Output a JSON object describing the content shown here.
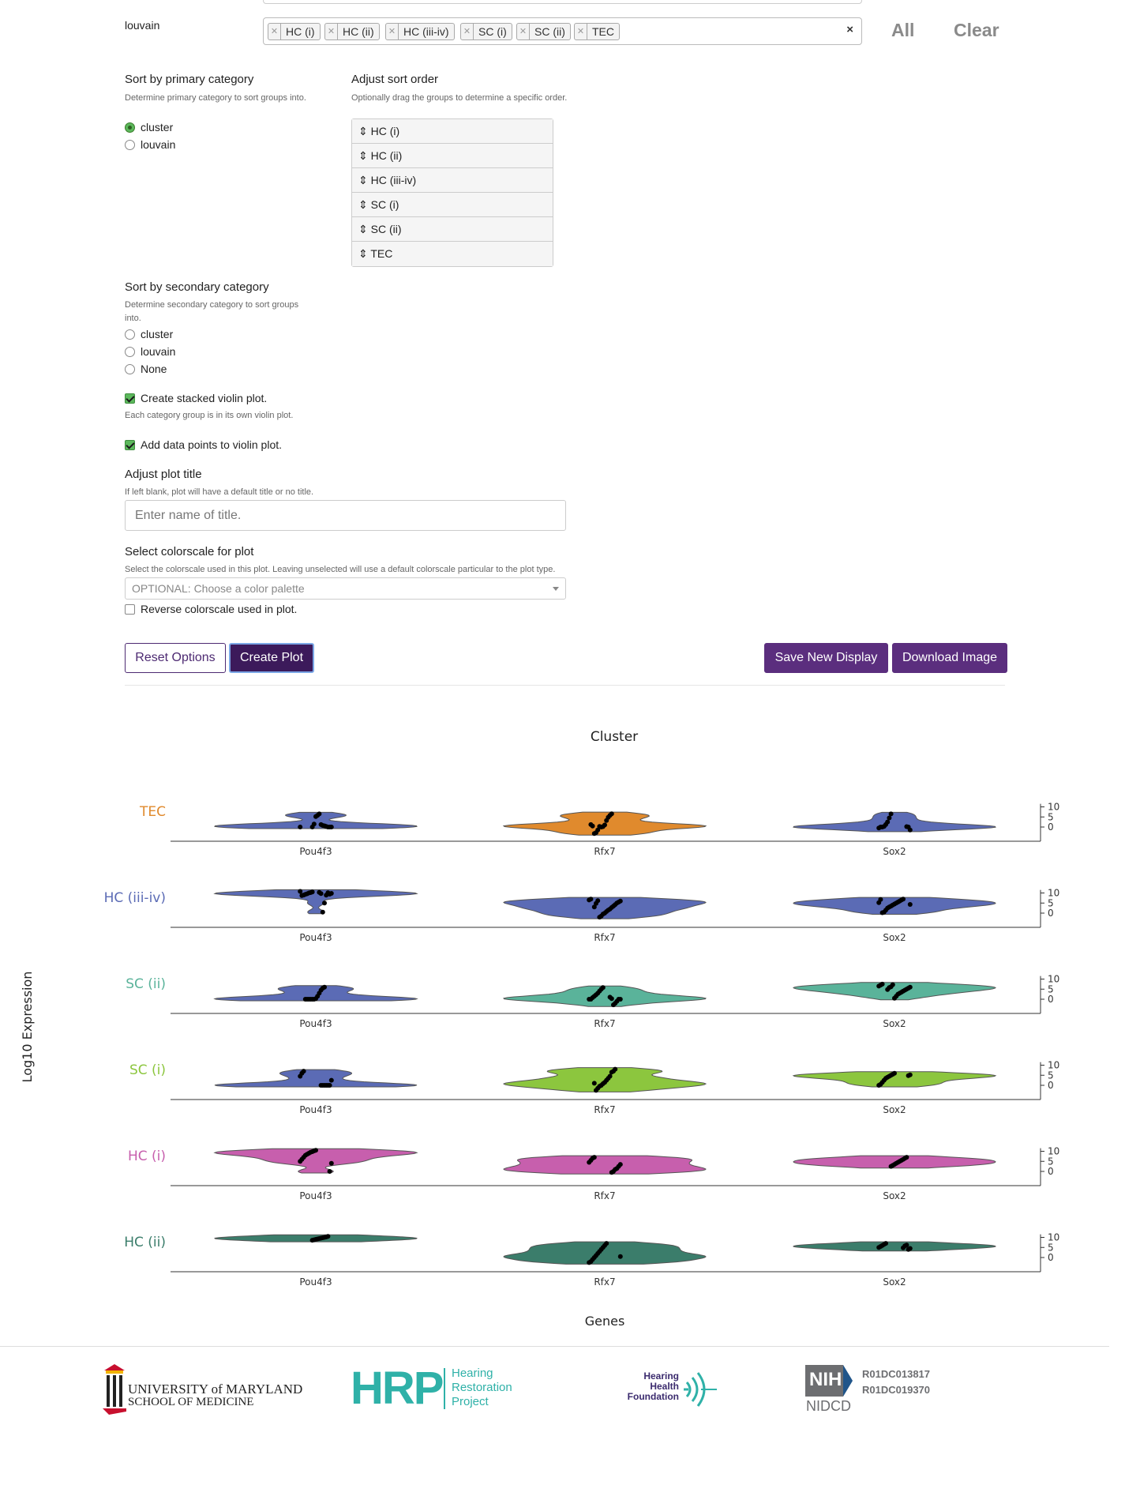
{
  "filter": {
    "label": "louvain",
    "tags": [
      "HC (i)",
      "HC (ii)",
      "HC (iii-iv)",
      "SC (i)",
      "SC (ii)",
      "TEC"
    ],
    "clear_x": "×",
    "all_label": "All",
    "clear_label": "Clear"
  },
  "primary": {
    "title": "Sort by primary category",
    "hint": "Determine primary category to sort groups into.",
    "options": [
      "cluster",
      "louvain"
    ],
    "selected": "cluster"
  },
  "sort_order": {
    "title": "Adjust sort order",
    "hint": "Optionally drag the groups to determine a specific order.",
    "items": [
      "⇕ HC (i)",
      "⇕ HC (ii)",
      "⇕ HC (iii-iv)",
      "⇕ SC (i)",
      "⇕ SC (ii)",
      "⇕ TEC"
    ]
  },
  "secondary": {
    "title": "Sort by secondary category",
    "hint": "Determine secondary category to sort groups into.",
    "options": [
      "cluster",
      "louvain",
      "None"
    ]
  },
  "stacked": {
    "label": "Create stacked violin plot.",
    "hint": "Each category group is in its own violin plot.",
    "checked": true
  },
  "datapoints": {
    "label": "Add data points to violin plot.",
    "checked": true
  },
  "plot_title": {
    "title": "Adjust plot title",
    "hint": "If left blank, plot will have a default title or no title.",
    "placeholder": "Enter name of title."
  },
  "colorscale": {
    "title": "Select colorscale for plot",
    "hint": "Select the colorscale used in this plot. Leaving unselected will use a default colorscale particular to the plot type.",
    "placeholder": "OPTIONAL: Choose a color palette",
    "reverse_label": "Reverse colorscale used in plot."
  },
  "buttons": {
    "reset": "Reset Options",
    "create": "Create Plot",
    "save": "Save New Display",
    "download": "Download Image"
  },
  "chart_data": {
    "type": "violin",
    "title": "Cluster",
    "xlabel": "Genes",
    "ylabel": "Log10 Expression",
    "genes": [
      "Pou4f3",
      "Rfx7",
      "Sox2"
    ],
    "yticks": [
      0,
      5,
      10
    ],
    "ylim": [
      -4,
      12
    ],
    "rows": [
      {
        "name": "TEC",
        "color": "#e08a2d",
        "violins": [
          {
            "gene": "Pou4f3",
            "fill": "#5b6bb5",
            "points": [
              0,
              0,
              0,
              0,
              0.3,
              0.6,
              0.8,
              1.2,
              6.5,
              5.8,
              5.2,
              1.5,
              0
            ]
          },
          {
            "gene": "Rfx7",
            "fill": "#e08a2d",
            "points": [
              6.6,
              5.8,
              4.8,
              3.2,
              1,
              0.2,
              0,
              0.3,
              -1.5,
              -2.8,
              -3.2,
              0.5,
              1.2
            ]
          },
          {
            "gene": "Sox2",
            "fill": "#5b6bb5",
            "points": [
              6.5,
              4.5,
              2.5,
              1.2,
              0.3,
              0,
              0,
              -0.5,
              -1.5,
              0,
              0.2
            ]
          }
        ]
      },
      {
        "name": "HC (iii-iv)",
        "color": "#5b6bb5",
        "violins": [
          {
            "gene": "Pou4f3",
            "fill": "#5b6bb5",
            "points": [
              10.5,
              10.2,
              10,
              9.6,
              9.3,
              9,
              8.7,
              10.8,
              9.8,
              9.4,
              10.1,
              8.9,
              5,
              0.5,
              9.7,
              10.3
            ]
          },
          {
            "gene": "Rfx7",
            "fill": "#5b6bb5",
            "points": [
              7,
              6.5,
              6,
              5.5,
              5,
              4.2,
              3.5,
              2.8,
              2,
              1.5,
              0.8,
              0,
              -0.5,
              -1.5,
              -2,
              6.2,
              4.8,
              3
            ]
          },
          {
            "gene": "Sox2",
            "fill": "#5b6bb5",
            "points": [
              7,
              6.5,
              6,
              5.5,
              5,
              4.5,
              4,
              3.5,
              3,
              2.5,
              1.5,
              0.5,
              0.2,
              6.8,
              5.2,
              4.3
            ]
          }
        ]
      },
      {
        "name": "SC (ii)",
        "color": "#5ab39a",
        "violins": [
          {
            "gene": "Pou4f3",
            "fill": "#5b6bb5",
            "points": [
              6,
              5.5,
              4.5,
              3,
              1.5,
              0.3,
              0,
              0,
              0,
              0,
              0,
              0
            ]
          },
          {
            "gene": "Rfx7",
            "fill": "#5ab39a",
            "points": [
              5.8,
              5,
              4,
              3,
              2.2,
              1.5,
              0.8,
              0,
              0,
              0,
              0,
              -1,
              -2,
              -2.8,
              0.3,
              1
            ]
          },
          {
            "gene": "Sox2",
            "fill": "#5ab39a",
            "points": [
              7.5,
              7,
              6.5,
              6,
              5.5,
              5,
              4.5,
              4,
              3.5,
              3,
              2.5,
              1.5,
              0.5,
              7.2,
              6.2,
              5.8,
              4.8
            ]
          }
        ]
      },
      {
        "name": "SC (i)",
        "color": "#8cc63e",
        "violins": [
          {
            "gene": "Pou4f3",
            "fill": "#5b6bb5",
            "points": [
              7,
              6,
              4.5,
              2.5,
              0,
              0,
              0,
              0,
              0,
              0
            ]
          },
          {
            "gene": "Rfx7",
            "fill": "#8cc63e",
            "points": [
              8,
              7,
              6.5,
              4.5,
              3.5,
              2.5,
              1.5,
              0.8,
              0,
              -0.5,
              -1.5,
              -2.5,
              1
            ]
          },
          {
            "gene": "Sox2",
            "fill": "#8cc63e",
            "points": [
              6,
              5.5,
              5,
              4.5,
              4,
              3.5,
              2.5,
              1.5,
              0.5,
              0,
              5.2,
              4.8
            ]
          }
        ]
      },
      {
        "name": "HC (i)",
        "color": "#c75fad",
        "violins": [
          {
            "gene": "Pou4f3",
            "fill": "#c75fad",
            "points": [
              10.5,
              10.2,
              9.8,
              9.5,
              9,
              8.5,
              8,
              7,
              6,
              5,
              4,
              0
            ]
          },
          {
            "gene": "Rfx7",
            "fill": "#c75fad",
            "points": [
              7,
              6.5,
              5.5,
              4.5,
              3.5,
              2.5,
              1.5,
              1,
              0,
              -0.5
            ]
          },
          {
            "gene": "Sox2",
            "fill": "#c75fad",
            "points": [
              7,
              6.5,
              6,
              5.5,
              5,
              4.5,
              4,
              3.5,
              3,
              2.5
            ]
          }
        ]
      },
      {
        "name": "HC (ii)",
        "color": "#3b7d6b",
        "violins": [
          {
            "gene": "Pou4f3",
            "fill": "#3b7d6b",
            "points": [
              10.5,
              10.2,
              10,
              9.8,
              9.6,
              9.4,
              9.2,
              9,
              8.8,
              8.6
            ]
          },
          {
            "gene": "Rfx7",
            "fill": "#3b7d6b",
            "points": [
              7,
              6,
              5,
              4,
              3,
              2,
              1,
              0,
              -1,
              -2,
              -2.5,
              0.5
            ]
          },
          {
            "gene": "Sox2",
            "fill": "#3b7d6b",
            "points": [
              7,
              6.5,
              6,
              5.5,
              5,
              4.5,
              4,
              6.2,
              5.8,
              4.8
            ]
          }
        ]
      }
    ]
  },
  "footer": {
    "umd_line1": "UNIVERSITY of MARYLAND",
    "umd_line2": "SCHOOL OF MEDICINE",
    "hrp_letters": "HRP",
    "hrp_words": [
      "Hearing",
      "Restoration",
      "Project"
    ],
    "hhf_words": [
      "Hearing",
      "Health",
      "Foundation"
    ],
    "nih_label": "NIH",
    "nidcd_label": "NIDCD",
    "grants": [
      "R01DC013817",
      "R01DC019370"
    ]
  }
}
